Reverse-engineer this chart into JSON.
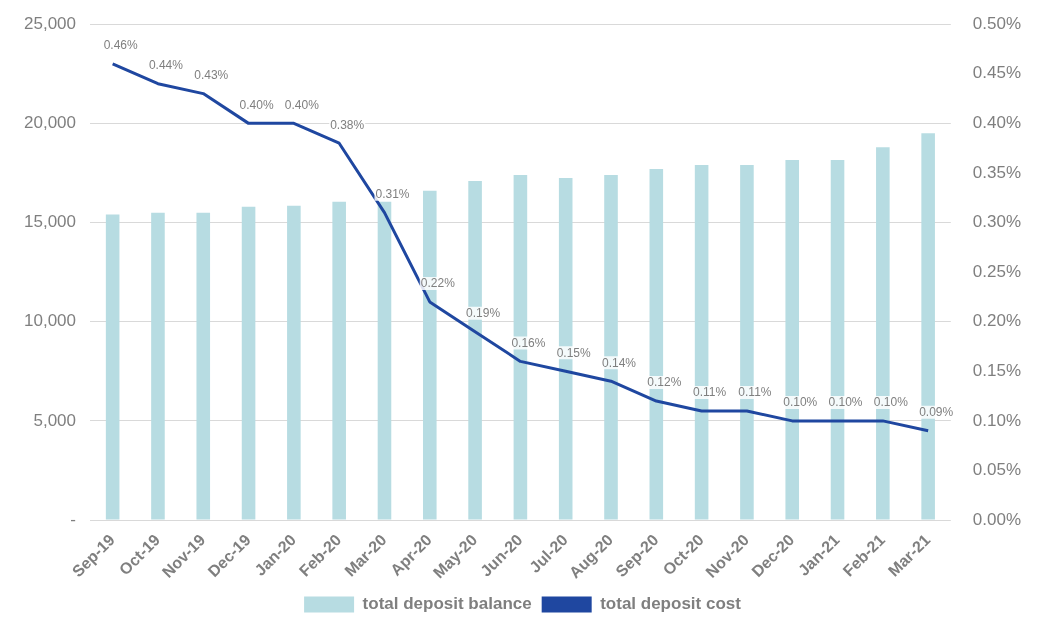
{
  "chart_data": {
    "type": "bar",
    "categories": [
      "Sep-19",
      "Oct-19",
      "Nov-19",
      "Dec-19",
      "Jan-20",
      "Feb-20",
      "Mar-20",
      "Apr-20",
      "May-20",
      "Jun-20",
      "Jul-20",
      "Aug-20",
      "Sep-20",
      "Oct-20",
      "Nov-20",
      "Dec-20",
      "Jan-21",
      "Feb-21",
      "Mar-21"
    ],
    "series": [
      {
        "name": "total deposit balance",
        "color": "#b7dce2",
        "values": [
          15400,
          15500,
          15500,
          15800,
          15850,
          16050,
          16050,
          16600,
          17100,
          17400,
          17250,
          17400,
          17700,
          17900,
          17900,
          18150,
          18150,
          18800,
          19500
        ]
      },
      {
        "name": "total deposit cost",
        "type": "line",
        "axis": "y2",
        "color": "#1f47a0",
        "values": [
          0.46,
          0.44,
          0.43,
          0.4,
          0.4,
          0.38,
          0.31,
          0.22,
          0.19,
          0.16,
          0.15,
          0.14,
          0.12,
          0.11,
          0.11,
          0.1,
          0.1,
          0.1,
          0.09
        ],
        "value_labels": [
          "0.46%",
          "0.44%",
          "0.43%",
          "0.40%",
          "0.40%",
          "0.38%",
          "0.31%",
          "0.22%",
          "0.19%",
          "0.16%",
          "0.15%",
          "0.14%",
          "0.12%",
          "0.11%",
          "0.11%",
          "0.10%",
          "0.10%",
          "0.10%",
          "0.09%"
        ]
      }
    ],
    "ylim": [
      0,
      25000
    ],
    "yticks": [
      {
        "value": 0,
        "label": "-"
      },
      {
        "value": 5000,
        "label": "5,000"
      },
      {
        "value": 10000,
        "label": "10,000"
      },
      {
        "value": 15000,
        "label": "15,000"
      },
      {
        "value": 20000,
        "label": "20,000"
      },
      {
        "value": 25000,
        "label": "25,000"
      }
    ],
    "y2lim": [
      0,
      0.5
    ],
    "y2ticks": [
      {
        "value": 0,
        "label": "0.00%"
      },
      {
        "value": 0.05,
        "label": "0.05%"
      },
      {
        "value": 0.1,
        "label": "0.10%"
      },
      {
        "value": 0.15,
        "label": "0.15%"
      },
      {
        "value": 0.2,
        "label": "0.20%"
      },
      {
        "value": 0.25,
        "label": "0.25%"
      },
      {
        "value": 0.3,
        "label": "0.30%"
      },
      {
        "value": 0.35,
        "label": "0.35%"
      },
      {
        "value": 0.4,
        "label": "0.40%"
      },
      {
        "value": 0.45,
        "label": "0.45%"
      },
      {
        "value": 0.5,
        "label": "0.50%"
      }
    ],
    "grid": "y",
    "legend": "bottom",
    "marker": "none",
    "line_style": "solid"
  }
}
